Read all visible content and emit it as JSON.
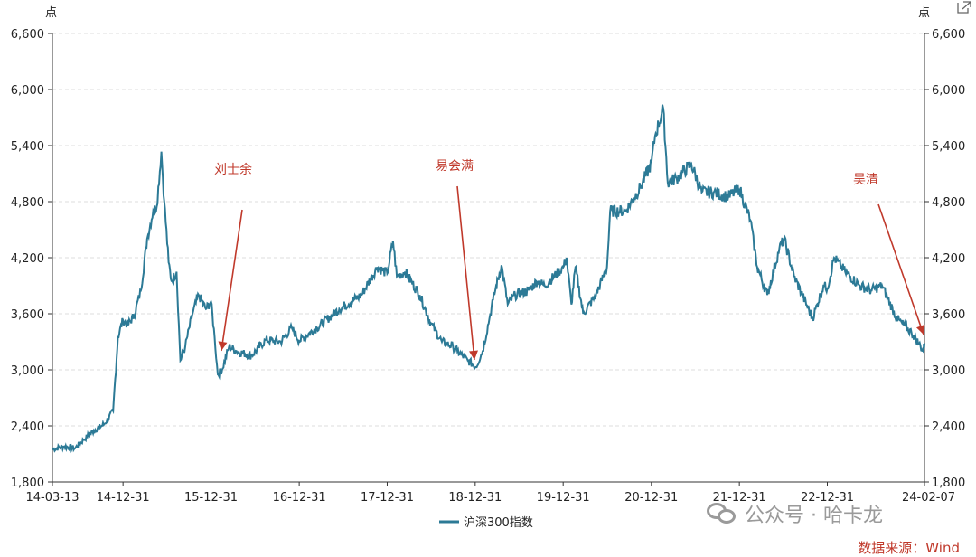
{
  "chart_data": {
    "type": "line",
    "unit_left": "点",
    "unit_right": "点",
    "ylim": [
      1800,
      6600
    ],
    "yticks": [
      "1,800",
      "2,400",
      "3,000",
      "3,600",
      "4,200",
      "4,800",
      "5,400",
      "6,000",
      "6,600"
    ],
    "ytick_values": [
      1800,
      2400,
      3000,
      3600,
      4200,
      4800,
      5400,
      6000,
      6600
    ],
    "xlim": [
      "2014-03-13",
      "2024-02-07"
    ],
    "xticks": [
      "14-03-13",
      "14-12-31",
      "15-12-31",
      "16-12-31",
      "17-12-31",
      "18-12-31",
      "19-12-31",
      "20-12-31",
      "21-12-31",
      "22-12-31",
      "24-02-07"
    ],
    "xtick_dates": [
      "2014-03-13",
      "2014-12-31",
      "2015-12-31",
      "2016-12-31",
      "2017-12-31",
      "2018-12-31",
      "2019-12-31",
      "2020-12-31",
      "2021-12-31",
      "2022-12-31",
      "2024-02-07"
    ],
    "grid": "horizontal dashed",
    "legend": "bottom-center",
    "line_color": "#2c7a96",
    "series": [
      {
        "name": "沪深300指数",
        "x": [
          "2014-03-13",
          "2014-05-01",
          "2014-06-15",
          "2014-07-20",
          "2014-09-01",
          "2014-10-15",
          "2014-11-20",
          "2014-12-10",
          "2014-12-31",
          "2015-01-20",
          "2015-02-15",
          "2015-03-15",
          "2015-04-10",
          "2015-05-05",
          "2015-05-20",
          "2015-06-08",
          "2015-06-20",
          "2015-07-08",
          "2015-07-20",
          "2015-08-10",
          "2015-08-26",
          "2015-09-15",
          "2015-10-15",
          "2015-11-10",
          "2015-12-10",
          "2015-12-31",
          "2016-01-15",
          "2016-01-28",
          "2016-02-15",
          "2016-03-15",
          "2016-04-15",
          "2016-06-15",
          "2016-08-15",
          "2016-10-15",
          "2016-11-30",
          "2016-12-31",
          "2017-03-15",
          "2017-06-15",
          "2017-09-15",
          "2017-11-20",
          "2017-12-31",
          "2018-01-24",
          "2018-02-09",
          "2018-03-15",
          "2018-05-15",
          "2018-06-30",
          "2018-08-15",
          "2018-09-30",
          "2018-10-18",
          "2018-11-30",
          "2019-01-03",
          "2019-01-31",
          "2019-02-28",
          "2019-03-15",
          "2019-04-19",
          "2019-05-15",
          "2019-06-15",
          "2019-08-10",
          "2019-09-15",
          "2019-10-15",
          "2019-12-31",
          "2020-01-14",
          "2020-02-03",
          "2020-02-20",
          "2020-03-23",
          "2020-05-15",
          "2020-06-30",
          "2020-07-13",
          "2020-09-15",
          "2020-11-15",
          "2020-12-31",
          "2021-01-15",
          "2021-02-18",
          "2021-03-09",
          "2021-04-15",
          "2021-06-15",
          "2021-07-28",
          "2021-09-15",
          "2021-11-15",
          "2021-12-31",
          "2022-02-15",
          "2022-03-15",
          "2022-04-26",
          "2022-06-15",
          "2022-07-05",
          "2022-08-15",
          "2022-10-31",
          "2022-12-15",
          "2022-12-31",
          "2023-01-28",
          "2023-03-15",
          "2023-05-15",
          "2023-06-30",
          "2023-08-15",
          "2023-10-15",
          "2023-12-15",
          "2024-01-15",
          "2024-02-02",
          "2024-02-07"
        ],
        "values": [
          2150,
          2180,
          2160,
          2250,
          2350,
          2420,
          2560,
          3350,
          3533,
          3480,
          3580,
          3850,
          4400,
          4700,
          4750,
          5335,
          4800,
          4150,
          3950,
          4050,
          3100,
          3250,
          3600,
          3800,
          3650,
          3731,
          3350,
          2950,
          3000,
          3250,
          3200,
          3150,
          3320,
          3300,
          3450,
          3310,
          3450,
          3650,
          3800,
          4100,
          4030,
          4380,
          4000,
          4050,
          3800,
          3500,
          3300,
          3250,
          3200,
          3100,
          3030,
          3200,
          3550,
          3750,
          4120,
          3700,
          3800,
          3850,
          3950,
          3900,
          4096,
          4200,
          3700,
          4100,
          3600,
          3800,
          4100,
          4700,
          4700,
          4950,
          5212,
          5500,
          5800,
          5000,
          5050,
          5200,
          4900,
          4900,
          4850,
          4940,
          4600,
          4100,
          3800,
          4300,
          4400,
          4000,
          3550,
          3900,
          3872,
          4200,
          4050,
          3900,
          3850,
          3900,
          3550,
          3400,
          3280,
          3200,
          3286
        ]
      }
    ],
    "annotations": [
      {
        "label": "刘士余",
        "color": "#c0392b"
      },
      {
        "label": "易会满",
        "color": "#c0392b"
      },
      {
        "label": "吴清",
        "color": "#c0392b"
      }
    ]
  },
  "watermark": "公众号 · 哈卡龙",
  "source": "数据来源：Wind"
}
